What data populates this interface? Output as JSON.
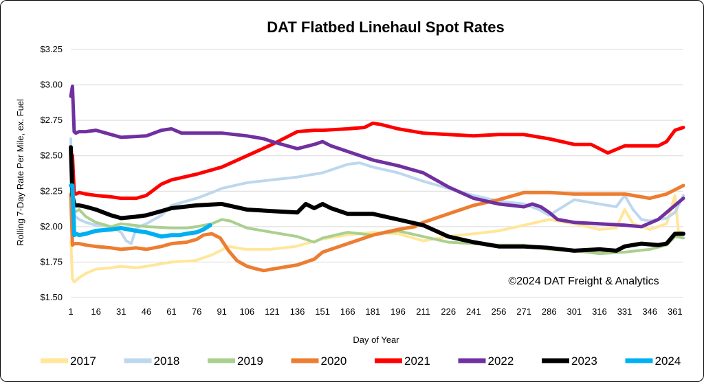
{
  "chart_data": {
    "type": "line",
    "title": "DAT Flatbed Linehaul Spot Rates",
    "xlabel": "Day of Year",
    "ylabel": "Rolling 7-Day Rate Per Mile, ex. Fuel",
    "annotation": "©2024 DAT Freight & Analytics",
    "xlim": [
      1,
      366
    ],
    "ylim": [
      1.5,
      3.25
    ],
    "x_ticks": [
      1,
      16,
      31,
      46,
      61,
      76,
      91,
      106,
      121,
      136,
      151,
      166,
      181,
      196,
      211,
      226,
      241,
      256,
      271,
      286,
      301,
      316,
      331,
      346,
      361
    ],
    "y_ticks": [
      1.5,
      1.75,
      2.0,
      2.25,
      2.5,
      2.75,
      3.0,
      3.25
    ],
    "y_tick_labels": [
      "$1.50",
      "$1.75",
      "$2.00",
      "$2.25",
      "$2.50",
      "$2.75",
      "$3.00",
      "$3.25"
    ],
    "grid": "horizontal",
    "legend_position": "bottom",
    "series": [
      {
        "name": "2017",
        "color": "#FFE699",
        "width": 4,
        "x": [
          1,
          2,
          3,
          6,
          10,
          16,
          25,
          31,
          40,
          46,
          61,
          75,
          85,
          95,
          105,
          120,
          135,
          150,
          165,
          181,
          196,
          211,
          226,
          241,
          256,
          271,
          286,
          301,
          316,
          326,
          331,
          336,
          346,
          356,
          361,
          363,
          366
        ],
        "y": [
          1.9,
          1.63,
          1.61,
          1.64,
          1.67,
          1.7,
          1.71,
          1.72,
          1.71,
          1.72,
          1.75,
          1.76,
          1.8,
          1.86,
          1.84,
          1.84,
          1.86,
          1.91,
          1.94,
          1.96,
          1.95,
          1.9,
          1.93,
          1.95,
          1.97,
          2.01,
          2.05,
          2.02,
          1.98,
          1.99,
          2.12,
          2.02,
          1.98,
          2.02,
          2.22,
          1.97,
          1.95
        ]
      },
      {
        "name": "2018",
        "color": "#BDD7EE",
        "width": 4,
        "x": [
          1,
          2,
          3,
          6,
          10,
          16,
          25,
          31,
          34,
          37,
          40,
          46,
          55,
          61,
          70,
          76,
          85,
          91,
          106,
          121,
          136,
          151,
          166,
          173,
          181,
          196,
          211,
          226,
          241,
          256,
          271,
          280,
          286,
          301,
          316,
          326,
          331,
          336,
          341,
          346,
          356,
          361,
          366
        ],
        "y": [
          2.62,
          2.13,
          2.08,
          2.05,
          2.03,
          2.01,
          2.0,
          1.96,
          1.9,
          1.88,
          1.99,
          2.02,
          2.08,
          2.15,
          2.18,
          2.2,
          2.24,
          2.27,
          2.31,
          2.33,
          2.35,
          2.38,
          2.44,
          2.45,
          2.42,
          2.38,
          2.32,
          2.27,
          2.22,
          2.18,
          2.16,
          2.12,
          2.08,
          2.19,
          2.16,
          2.14,
          2.22,
          2.12,
          2.05,
          2.04,
          2.06,
          2.1,
          2.22
        ]
      },
      {
        "name": "2019",
        "color": "#A9D08E",
        "width": 4,
        "x": [
          1,
          2,
          3,
          6,
          10,
          16,
          25,
          31,
          46,
          61,
          70,
          76,
          85,
          91,
          96,
          106,
          121,
          136,
          146,
          151,
          166,
          181,
          196,
          211,
          226,
          241,
          256,
          271,
          286,
          301,
          316,
          331,
          346,
          356,
          361,
          366
        ],
        "y": [
          2.22,
          2.05,
          2.1,
          2.12,
          2.07,
          2.03,
          2.0,
          2.02,
          2.0,
          1.99,
          1.99,
          2.0,
          2.02,
          2.05,
          2.04,
          1.99,
          1.96,
          1.93,
          1.89,
          1.92,
          1.96,
          1.94,
          1.97,
          1.93,
          1.89,
          1.88,
          1.87,
          1.87,
          1.84,
          1.83,
          1.81,
          1.82,
          1.84,
          1.87,
          1.93,
          1.92
        ]
      },
      {
        "name": "2020",
        "color": "#ED7D31",
        "width": 5,
        "x": [
          1,
          2,
          3,
          6,
          10,
          16,
          25,
          31,
          40,
          46,
          55,
          61,
          70,
          76,
          80,
          85,
          90,
          95,
          100,
          106,
          112,
          116,
          121,
          131,
          136,
          146,
          151,
          166,
          181,
          196,
          206,
          211,
          226,
          241,
          256,
          271,
          286,
          301,
          316,
          331,
          346,
          356,
          361,
          366
        ],
        "y": [
          2.23,
          1.87,
          1.88,
          1.88,
          1.87,
          1.86,
          1.85,
          1.84,
          1.85,
          1.84,
          1.86,
          1.88,
          1.89,
          1.91,
          1.94,
          1.95,
          1.92,
          1.83,
          1.76,
          1.72,
          1.7,
          1.69,
          1.7,
          1.72,
          1.73,
          1.77,
          1.82,
          1.88,
          1.94,
          1.98,
          2.0,
          2.03,
          2.09,
          2.15,
          2.19,
          2.24,
          2.24,
          2.23,
          2.23,
          2.23,
          2.2,
          2.23,
          2.26,
          2.29
        ]
      },
      {
        "name": "2021",
        "color": "#FF0000",
        "width": 5,
        "x": [
          1,
          2,
          3,
          4,
          6,
          10,
          16,
          25,
          31,
          40,
          46,
          55,
          61,
          76,
          91,
          106,
          121,
          131,
          136,
          146,
          151,
          166,
          176,
          181,
          186,
          196,
          211,
          226,
          241,
          256,
          271,
          286,
          301,
          311,
          321,
          331,
          341,
          351,
          356,
          361,
          366
        ],
        "y": [
          2.52,
          2.5,
          2.24,
          2.23,
          2.24,
          2.23,
          2.22,
          2.21,
          2.2,
          2.2,
          2.22,
          2.3,
          2.33,
          2.37,
          2.42,
          2.5,
          2.58,
          2.64,
          2.67,
          2.68,
          2.68,
          2.69,
          2.7,
          2.73,
          2.72,
          2.69,
          2.66,
          2.65,
          2.64,
          2.65,
          2.65,
          2.62,
          2.58,
          2.58,
          2.52,
          2.57,
          2.57,
          2.57,
          2.6,
          2.68,
          2.7
        ]
      },
      {
        "name": "2022",
        "color": "#7030A0",
        "width": 5,
        "x": [
          1,
          2,
          3,
          4,
          6,
          10,
          16,
          25,
          31,
          46,
          55,
          61,
          67,
          76,
          91,
          106,
          116,
          121,
          136,
          146,
          151,
          156,
          166,
          181,
          196,
          211,
          226,
          241,
          256,
          271,
          276,
          281,
          286,
          291,
          301,
          316,
          331,
          341,
          351,
          356,
          361,
          366
        ],
        "y": [
          2.92,
          2.99,
          2.67,
          2.66,
          2.67,
          2.67,
          2.68,
          2.65,
          2.63,
          2.64,
          2.68,
          2.69,
          2.66,
          2.66,
          2.66,
          2.64,
          2.62,
          2.6,
          2.55,
          2.58,
          2.6,
          2.57,
          2.53,
          2.47,
          2.43,
          2.38,
          2.28,
          2.2,
          2.16,
          2.14,
          2.16,
          2.14,
          2.1,
          2.05,
          2.03,
          2.02,
          2.01,
          2.0,
          2.05,
          2.1,
          2.15,
          2.2
        ]
      },
      {
        "name": "2023",
        "color": "#000000",
        "width": 6,
        "x": [
          1,
          2,
          3,
          4,
          6,
          10,
          16,
          25,
          31,
          40,
          46,
          55,
          61,
          76,
          91,
          106,
          121,
          136,
          141,
          146,
          151,
          156,
          166,
          181,
          196,
          211,
          226,
          241,
          256,
          271,
          286,
          301,
          316,
          326,
          331,
          341,
          351,
          356,
          361,
          366
        ],
        "y": [
          2.56,
          2.22,
          2.16,
          2.15,
          2.15,
          2.14,
          2.12,
          2.08,
          2.06,
          2.07,
          2.08,
          2.11,
          2.13,
          2.15,
          2.16,
          2.12,
          2.11,
          2.1,
          2.16,
          2.13,
          2.16,
          2.13,
          2.09,
          2.09,
          2.05,
          2.01,
          1.93,
          1.89,
          1.86,
          1.86,
          1.85,
          1.83,
          1.84,
          1.83,
          1.86,
          1.88,
          1.87,
          1.88,
          1.95,
          1.95
        ]
      },
      {
        "name": "2024",
        "color": "#00B0F0",
        "width": 6,
        "x": [
          1,
          2,
          3,
          4,
          6,
          10,
          16,
          25,
          31,
          40,
          46,
          55,
          61,
          66,
          70,
          76,
          80,
          84
        ],
        "y": [
          2.29,
          2.29,
          1.94,
          1.95,
          1.94,
          1.95,
          1.97,
          1.98,
          1.99,
          1.97,
          1.96,
          1.93,
          1.94,
          1.94,
          1.95,
          1.96,
          1.98,
          2.01
        ]
      }
    ]
  }
}
